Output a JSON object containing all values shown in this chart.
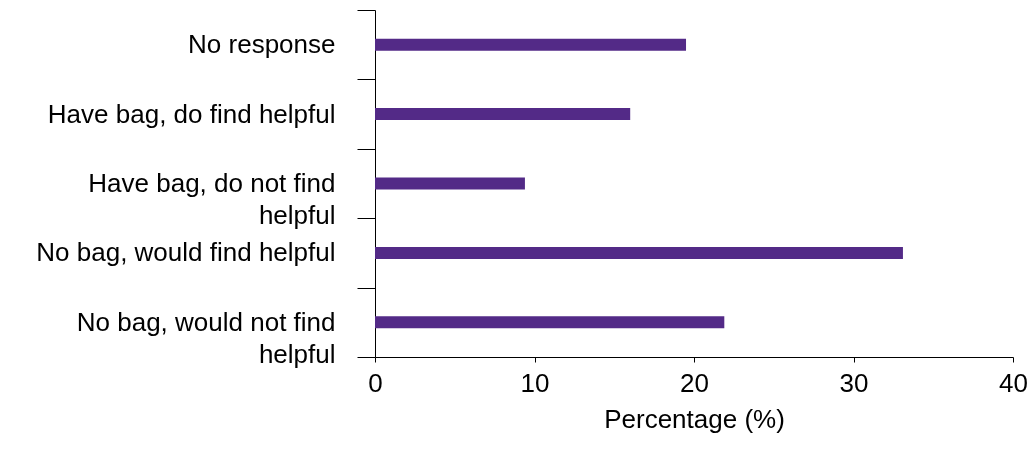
{
  "chart_data": {
    "type": "bar",
    "orientation": "horizontal",
    "xlabel": "Percentage (%)",
    "categories": [
      "No response",
      "Have bag, do find helpful",
      "Have bag, do not find helpful",
      "No bag, would find helpful",
      "No bag, would not find helpful"
    ],
    "values": [
      19.5,
      16.0,
      9.4,
      33.1,
      21.9
    ],
    "color": "#532a87",
    "xlim": [
      0,
      40
    ],
    "xticks": [
      0,
      10,
      20,
      30,
      40
    ],
    "grid": false
  }
}
